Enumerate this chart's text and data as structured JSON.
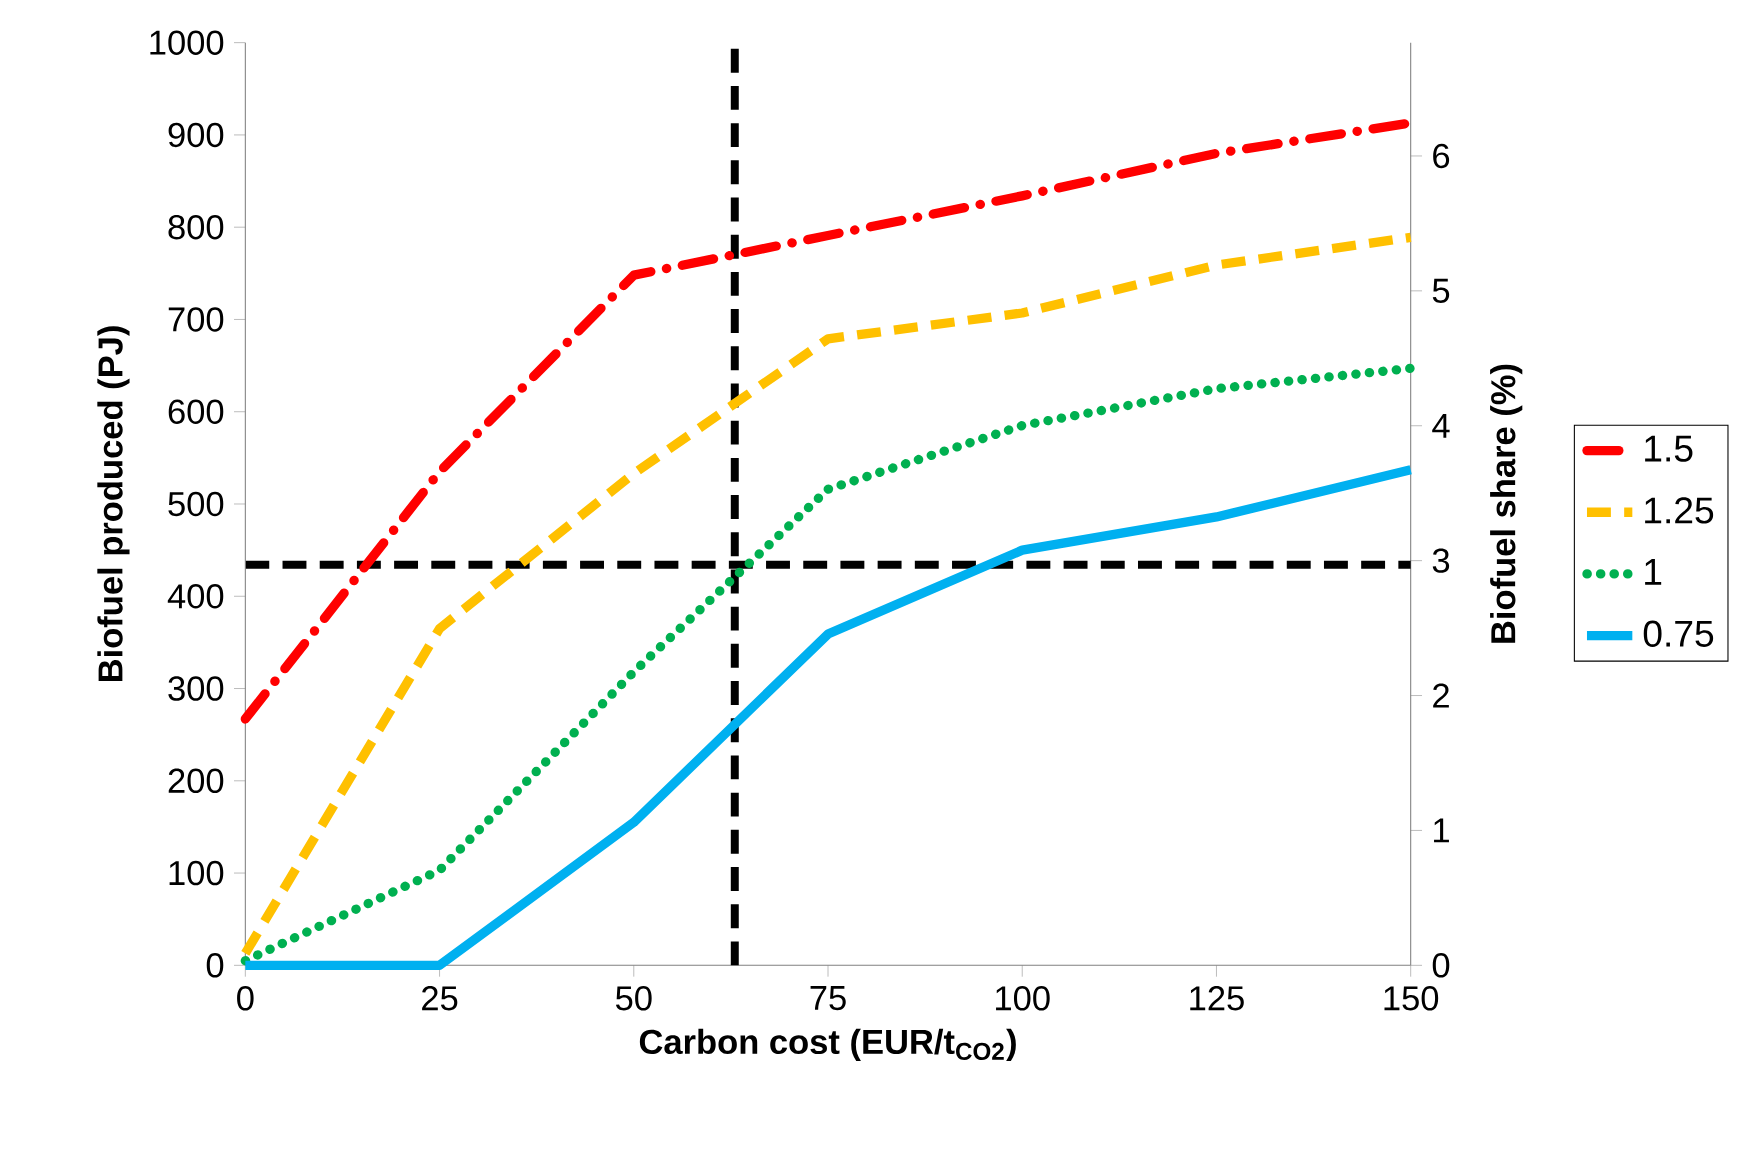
{
  "chart_data": {
    "type": "line",
    "xlabel": "Carbon cost (EUR/t$_{CO2}$)",
    "ylabel": "Biofuel produced (PJ)",
    "y2label": "Biofuel share (%)",
    "x": [
      0,
      25,
      50,
      75,
      100,
      125,
      150
    ],
    "series": [
      {
        "name": "1.5",
        "color": "#ff0000",
        "line_style": "dashdot",
        "values": [
          267,
          535,
          748,
          791,
          834,
          880,
          913
        ]
      },
      {
        "name": "1.25",
        "color": "#ffc000",
        "line_style": "dashed",
        "values": [
          13,
          365,
          533,
          679,
          707,
          759,
          789
        ]
      },
      {
        "name": "1",
        "color": "#00b050",
        "line_style": "dotted",
        "values": [
          5,
          103,
          318,
          516,
          585,
          625,
          647
        ]
      },
      {
        "name": "0.75",
        "color": "#00b0f0",
        "line_style": "solid",
        "values": [
          0,
          0,
          155,
          359,
          450,
          486,
          537
        ]
      }
    ],
    "xlim": [
      0,
      150
    ],
    "xticks": [
      0,
      25,
      50,
      75,
      100,
      125,
      150
    ],
    "ylim": [
      0,
      1000
    ],
    "yticks": [
      0,
      100,
      200,
      300,
      400,
      500,
      600,
      700,
      800,
      900,
      1000
    ],
    "y2lim": [
      0,
      6.84
    ],
    "y2ticks": [
      0,
      1,
      2,
      3,
      4,
      5,
      6
    ],
    "ref_lines": [
      {
        "axis": "y2",
        "value": 2.97,
        "color": "#000000",
        "line_style": "dashed"
      },
      {
        "axis": "x",
        "value": 63,
        "color": "#000000",
        "line_style": "dashed"
      }
    ],
    "legend": "right",
    "grid": false,
    "marker": "none"
  }
}
